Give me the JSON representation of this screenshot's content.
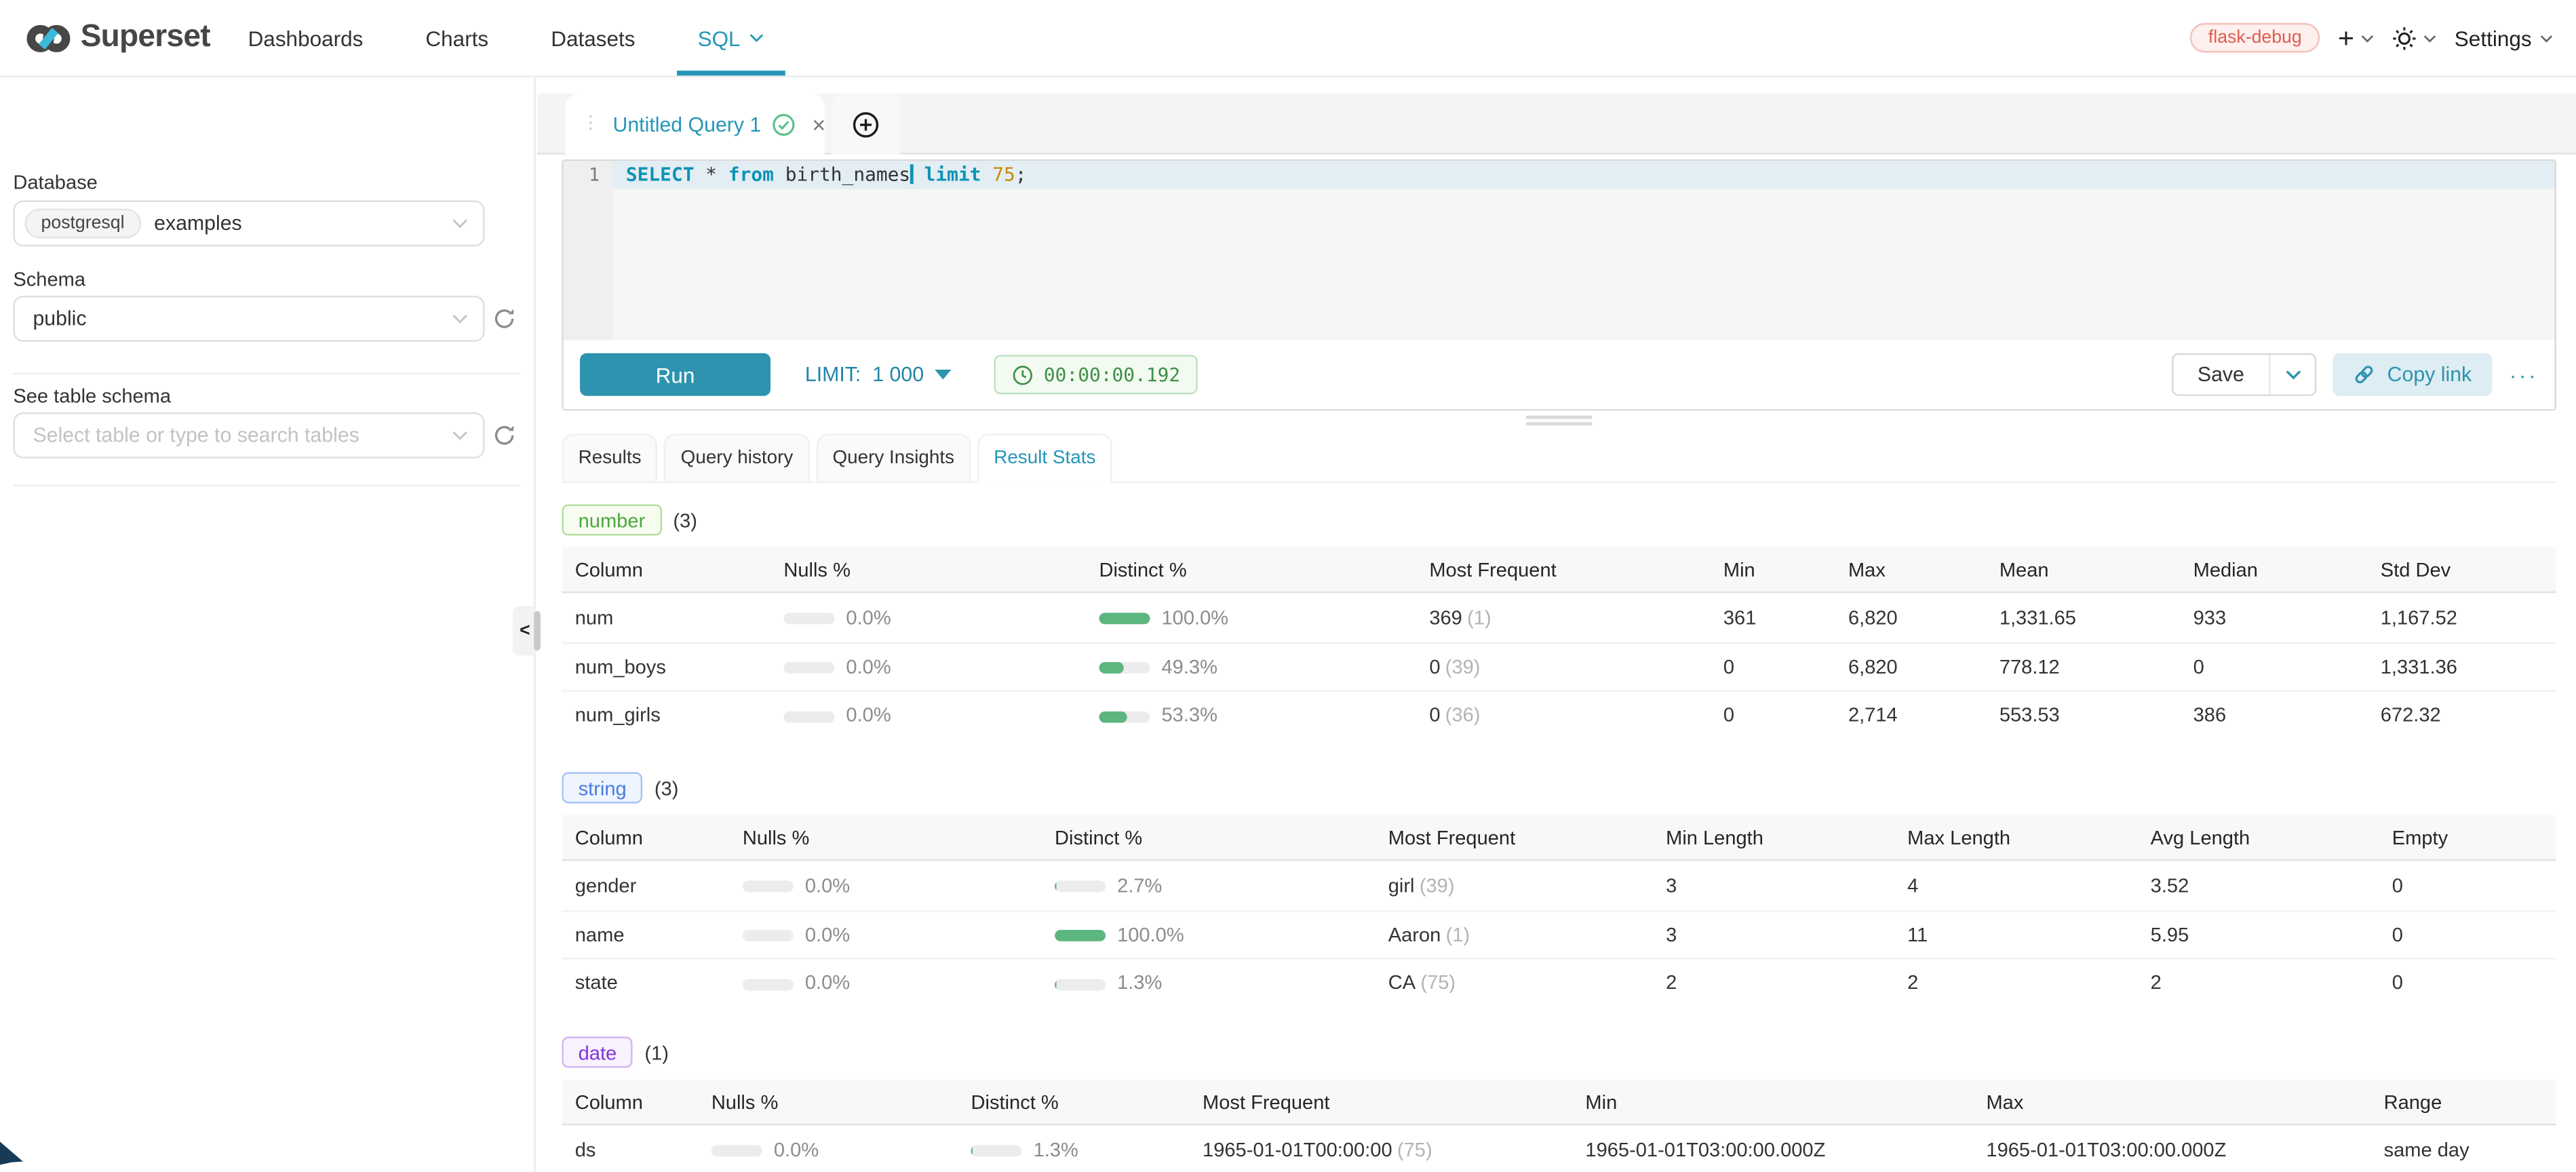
{
  "colors": {
    "accent": "#2596b8",
    "run": "#2e93ae",
    "green": "#5cb67f",
    "num_text": "#4ba83f",
    "num_bg": "#f6fcf0",
    "num_border": "#b2dd9b",
    "str_text": "#4a7be0",
    "str_bg": "#eef5ff",
    "str_border": "#a6c3f5",
    "date_text": "#8036d8",
    "date_bg": "#f8f1fe",
    "date_border": "#d2b5f2",
    "env_text": "#e15b50",
    "env_bg": "#fdf0ee",
    "env_border": "#f3c0bb",
    "timer_text": "#3f8f46",
    "timer_bg": "#f2faf1",
    "timer_border": "#c0e0c0"
  },
  "navbar": {
    "brand": "Superset",
    "items": [
      {
        "label": "Dashboards"
      },
      {
        "label": "Charts"
      },
      {
        "label": "Datasets"
      },
      {
        "label": "SQL"
      }
    ],
    "env_badge": "flask-debug",
    "settings_label": "Settings"
  },
  "sidebar": {
    "database_label": "Database",
    "database_engine": "postgresql",
    "database_value": "examples",
    "schema_label": "Schema",
    "schema_value": "public",
    "table_label": "See table schema",
    "table_placeholder": "Select table or type to search tables",
    "collapse_glyph": "<"
  },
  "tabstrip": {
    "active_tab_title": "Untitled Query 1",
    "drag_dots": "⋮",
    "close_glyph": "×"
  },
  "editor": {
    "line_number": "1",
    "tokens": [
      {
        "text": "SELECT"
      },
      {
        "text": " * "
      },
      {
        "text": "from"
      },
      {
        "text": " birth_names"
      },
      {
        "text": " limit"
      },
      {
        "text": " 75"
      },
      {
        "text": ";"
      }
    ]
  },
  "toolbar": {
    "run_label": "Run",
    "limit_label": "LIMIT:",
    "limit_value": "1 000",
    "timer_value": "00:00:00.192",
    "save_label": "Save",
    "copy_link_label": "Copy link",
    "more_label": "···"
  },
  "result_tabs": [
    {
      "label": "Results"
    },
    {
      "label": "Query history"
    },
    {
      "label": "Query Insights"
    },
    {
      "label": "Result Stats"
    }
  ],
  "sections": [
    {
      "badge": "number",
      "count": "(3)",
      "columns": [
        "Column",
        "Nulls %",
        "Distinct %",
        "Most Frequent",
        "Min",
        "Max",
        "Mean",
        "Median",
        "Std Dev"
      ],
      "rows": [
        {
          "name": "num",
          "nulls": "0.0%",
          "nulls_pct": 0,
          "distinct": "100.0%",
          "distinct_pct": 100,
          "freq": "369",
          "freq_count": "(1)",
          "stats": [
            "361",
            "6,820",
            "1,331.65",
            "933",
            "1,167.52"
          ]
        },
        {
          "name": "num_boys",
          "nulls": "0.0%",
          "nulls_pct": 0,
          "distinct": "49.3%",
          "distinct_pct": 49.3,
          "freq": "0",
          "freq_count": "(39)",
          "stats": [
            "0",
            "6,820",
            "778.12",
            "0",
            "1,331.36"
          ]
        },
        {
          "name": "num_girls",
          "nulls": "0.0%",
          "nulls_pct": 0,
          "distinct": "53.3%",
          "distinct_pct": 53.3,
          "freq": "0",
          "freq_count": "(36)",
          "stats": [
            "0",
            "2,714",
            "553.53",
            "386",
            "672.32"
          ]
        }
      ]
    },
    {
      "badge": "string",
      "count": "(3)",
      "columns": [
        "Column",
        "Nulls %",
        "Distinct %",
        "Most Frequent",
        "Min Length",
        "Max Length",
        "Avg Length",
        "Empty"
      ],
      "rows": [
        {
          "name": "gender",
          "nulls": "0.0%",
          "nulls_pct": 0,
          "distinct": "2.7%",
          "distinct_pct": 2.7,
          "freq": "girl",
          "freq_count": "(39)",
          "stats": [
            "3",
            "4",
            "3.52",
            "0"
          ]
        },
        {
          "name": "name",
          "nulls": "0.0%",
          "nulls_pct": 0,
          "distinct": "100.0%",
          "distinct_pct": 100,
          "freq": "Aaron",
          "freq_count": "(1)",
          "stats": [
            "3",
            "11",
            "5.95",
            "0"
          ]
        },
        {
          "name": "state",
          "nulls": "0.0%",
          "nulls_pct": 0,
          "distinct": "1.3%",
          "distinct_pct": 1.3,
          "freq": "CA",
          "freq_count": "(75)",
          "stats": [
            "2",
            "2",
            "2",
            "0"
          ]
        }
      ]
    },
    {
      "badge": "date",
      "count": "(1)",
      "columns": [
        "Column",
        "Nulls %",
        "Distinct %",
        "Most Frequent",
        "Min",
        "Max",
        "Range"
      ],
      "rows": [
        {
          "name": "ds",
          "nulls": "0.0%",
          "nulls_pct": 0,
          "distinct": "1.3%",
          "distinct_pct": 1.3,
          "freq": "1965-01-01T00:00:00",
          "freq_count": "(75)",
          "stats": [
            "1965-01-01T03:00:00.000Z",
            "1965-01-01T03:00:00.000Z",
            "same day"
          ]
        }
      ]
    }
  ]
}
